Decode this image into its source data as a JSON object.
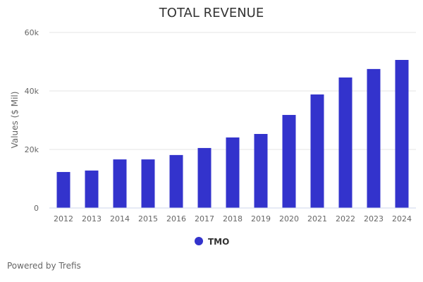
{
  "chart_data": {
    "type": "bar",
    "title": "TOTAL REVENUE",
    "xlabel": "",
    "ylabel": "Values ($ Mil)",
    "ylim": [
      0,
      60000
    ],
    "yticks": [
      0,
      20000,
      40000,
      60000
    ],
    "ytick_labels": [
      "0",
      "20k",
      "40k",
      "60k"
    ],
    "grid": true,
    "categories": [
      "2012",
      "2013",
      "2014",
      "2015",
      "2016",
      "2017",
      "2018",
      "2019",
      "2020",
      "2021",
      "2022",
      "2023",
      "2024"
    ],
    "series": [
      {
        "name": "TMO",
        "color": "#3333cc",
        "values": [
          12300,
          12800,
          16600,
          16600,
          18100,
          20500,
          24100,
          25300,
          31800,
          38800,
          44600,
          47500,
          50600
        ]
      }
    ],
    "legend": {
      "position": "bottom-center",
      "entries": [
        "TMO"
      ]
    }
  },
  "footer": {
    "credit": "Powered by Trefis"
  }
}
